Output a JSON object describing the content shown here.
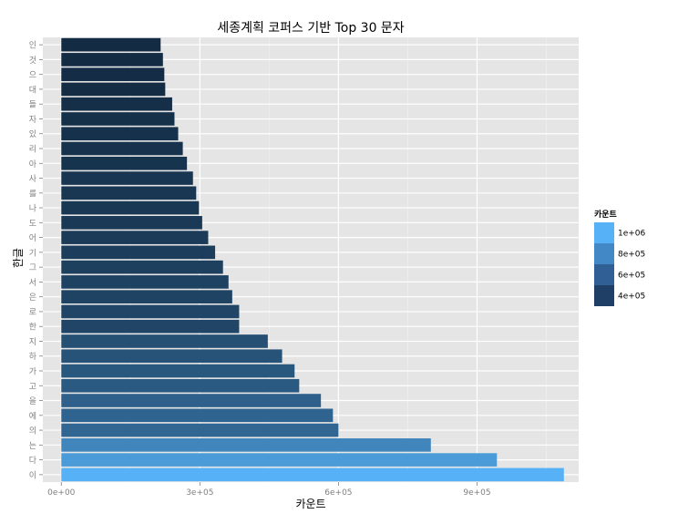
{
  "chart_data": {
    "type": "bar",
    "orientation": "horizontal",
    "title": "세종계획 코퍼스 기반 Top 30 문자",
    "xlabel": "카운트",
    "ylabel": "한글",
    "xlim": [
      -40000,
      1120000
    ],
    "x_ticks": [
      0,
      300000,
      600000,
      900000
    ],
    "x_tick_labels": [
      "0e+00",
      "3e+05",
      "6e+05",
      "9e+05"
    ],
    "grid": true,
    "legend_position": "right",
    "legend": {
      "title": "카운트",
      "labels": [
        "1e+06",
        "8e+05",
        "6e+05",
        "4e+05"
      ],
      "colors": [
        "#56B1F7",
        "#4388C6",
        "#305F95",
        "#1F3F66"
      ],
      "low_color": "#132B43",
      "high_color": "#56B1F7"
    },
    "categories": [
      "인",
      "것",
      "으",
      "대",
      "들",
      "자",
      "있",
      "리",
      "아",
      "사",
      "를",
      "나",
      "도",
      "어",
      "기",
      "그",
      "서",
      "은",
      "로",
      "한",
      "지",
      "하",
      "가",
      "고",
      "을",
      "에",
      "의",
      "는",
      "다",
      "이"
    ],
    "values": [
      215000,
      220000,
      223000,
      225000,
      240000,
      245000,
      253000,
      263000,
      272000,
      285000,
      292000,
      298000,
      305000,
      318000,
      333000,
      350000,
      362000,
      370000,
      385000,
      385000,
      447000,
      478000,
      505000,
      515000,
      562000,
      588000,
      600000,
      800000,
      943000,
      1088000
    ]
  }
}
